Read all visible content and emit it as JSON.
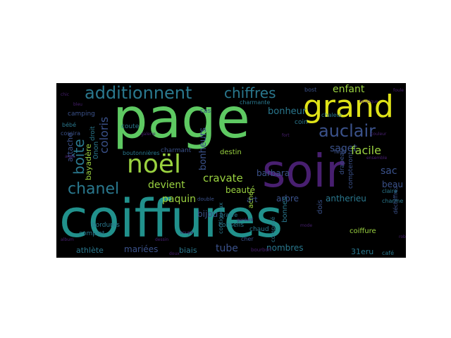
{
  "palette": {
    "background": "#000000",
    "yellow_green": "#9ad240",
    "yellow": "#dfe318",
    "light_green": "#5ec962",
    "teal": "#21918c",
    "dark_teal": "#2a788e",
    "blue": "#3b528b",
    "purple": "#481f70",
    "dark_purple": "#440154",
    "green": "#2fb47c"
  },
  "words": {
    "page": "page",
    "coiffures": "coiffures",
    "soir": "soir",
    "grand": "grand",
    "noel": "noël",
    "additionnent": "additionnent",
    "chiffres": "chiffres",
    "auclair": "auclair",
    "chanel": "chanel",
    "boite": "boîte",
    "coloris": "coloris",
    "enfant": "enfant",
    "saget": "saget",
    "facile": "facile",
    "cravate": "cravate",
    "devient": "devient",
    "bonheur": "bonheur",
    "barbara": "barbara",
    "beaute": "beauté",
    "sac": "sac",
    "beau": "beau",
    "antherieu": "antherieu",
    "arbre": "arbre",
    "art": "art",
    "paquin": "paquin",
    "bijou": "bijou",
    "mariees": "mariées",
    "tube": "tube",
    "nombres": "nombres",
    "biais": "biais",
    "athlete": "athlète",
    "31eru": "31eru",
    "bonheurs": "bonheurs",
    "bayadere": "bayadère",
    "attache": "attache",
    "onon": "0non",
    "destin": "destin",
    "coiffure": "coiffure",
    "bonnes": "bonnes",
    "dois": "dois",
    "acne": "acne",
    "camping": "camping",
    "charmant": "charmant",
    "charmante": "charmante",
    "coin": "coin",
    "chaleur": "chaleur",
    "boutonnieres": "boutonnières",
    "cas": "cas",
    "conseils": "conseils",
    "brave": "braive",
    "chaud": "chaud",
    "cher": "cher",
    "bordures": "bordures",
    "complet": "complet",
    "cossira": "cossira",
    "bebe": "bébé",
    "coute": "coute",
    "charme": "charme",
    "claire": "claire",
    "cafe": "café",
    "droit": "droit",
    "drapeau": "drapeau",
    "compteront": "compteront",
    "bourbon": "bourbon",
    "dechiffrez": "déchiffrez",
    "bost": "bost",
    "contigueux": "contigueux",
    "compose": "composé",
    "fleurs": "fleurs",
    "double": "double",
    "coupe": "coupe",
    "ensemble": "ensemble",
    "galerie": "galerie",
    "gardent": "gardent",
    "aigle": "aigle",
    "chic": "chic",
    "foule": "foule",
    "album": "album",
    "mode": "mode",
    "boutique": "boutique",
    "dessin": "dessin",
    "couleur": "couleur",
    "fort": "fort",
    "bleu": "bleu",
    "doux": "doux",
    "robe": "robe"
  }
}
